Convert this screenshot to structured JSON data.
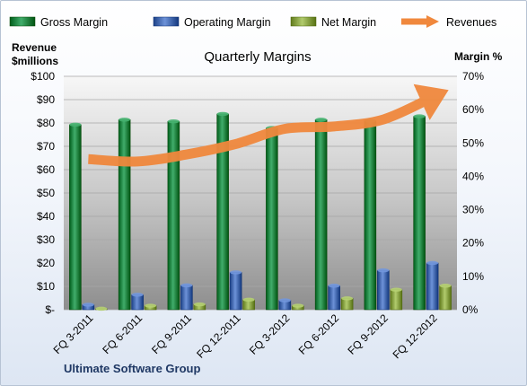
{
  "chart_data": {
    "type": "bar",
    "title": "Quarterly Margins",
    "footer": "Ultimate Software Group",
    "categories": [
      "FQ 3-2011",
      "FQ 6-2011",
      "FQ 9-2011",
      "FQ 12-2011",
      "FQ 3-2012",
      "FQ 6-2012",
      "FQ 9-2012",
      "FQ 12-2012"
    ],
    "left_axis": {
      "title_line1": "Revenue",
      "title_line2": "$millions",
      "range": [
        0,
        100
      ],
      "ticks": [
        "$-",
        "$10",
        "$20",
        "$30",
        "$40",
        "$50",
        "$60",
        "$70",
        "$80",
        "$90",
        "$100"
      ]
    },
    "right_axis": {
      "title": "Margin %",
      "range": [
        0,
        70
      ],
      "ticks": [
        "0%",
        "10%",
        "20%",
        "30%",
        "40%",
        "50%",
        "60%",
        "70%"
      ]
    },
    "grid": true,
    "legend_position": "top",
    "series": [
      {
        "name": "Gross Margin",
        "kind": "bar",
        "axis": "right",
        "color": "#1e8a48",
        "values": [
          55.5,
          57.0,
          56.5,
          58.7,
          54.5,
          57.0,
          56.7,
          58.0
        ]
      },
      {
        "name": "Operating Margin",
        "kind": "bar",
        "axis": "right",
        "color": "#4a6fb5",
        "values": [
          1.5,
          4.5,
          7.3,
          11.2,
          2.8,
          7.2,
          11.8,
          14.0
        ]
      },
      {
        "name": "Net Margin",
        "kind": "bar",
        "axis": "right",
        "color": "#8ea84a",
        "values": [
          0.3,
          1.2,
          1.6,
          3.0,
          1.2,
          3.4,
          6.0,
          7.2
        ]
      },
      {
        "name": "Revenues",
        "kind": "line",
        "axis": "left",
        "color": "#f0883d",
        "values": [
          64.5,
          63.5,
          66.5,
          71.0,
          77.5,
          78.5,
          81.5,
          91.0
        ]
      }
    ]
  }
}
